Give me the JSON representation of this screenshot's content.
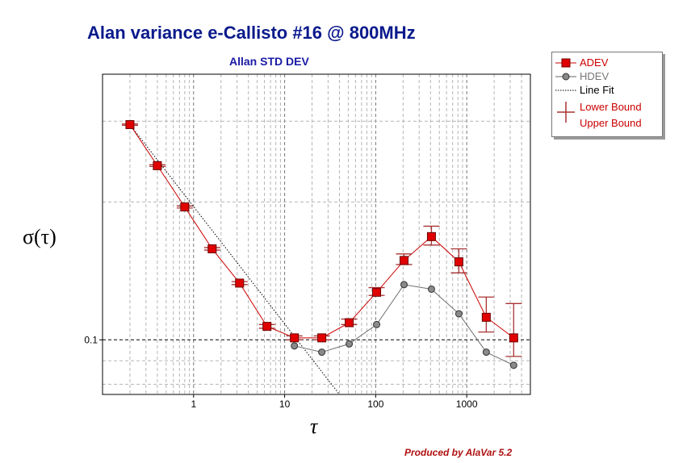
{
  "chart_data": {
    "type": "line",
    "title": "Alan variance e-Callisto #16 @ 800MHz",
    "subtitle": "Allan STD DEV",
    "xlabel": "τ",
    "ylabel": "σ(τ)",
    "xscale": "log",
    "yscale": "log",
    "xlim": [
      0.1,
      5000
    ],
    "ylim": [
      0.076,
      0.38
    ],
    "xticks": [
      "1",
      "10",
      "100",
      "1000"
    ],
    "yticks": [
      "0.1"
    ],
    "grid": true,
    "legend_position": "top-right",
    "series": [
      {
        "name": "ADEV",
        "color": "#cc0000",
        "marker": "square",
        "x": [
          0.2,
          0.4,
          0.8,
          1.6,
          3.2,
          6.4,
          12.8,
          25.6,
          51.2,
          102.4,
          204.8,
          409.6,
          819.2,
          1638.4,
          3276.8
        ],
        "y": [
          0.295,
          0.24,
          0.195,
          0.158,
          0.133,
          0.107,
          0.101,
          0.101,
          0.109,
          0.127,
          0.149,
          0.168,
          0.148,
          0.112,
          0.101
        ]
      },
      {
        "name": "HDEV",
        "color": "#777777",
        "marker": "circle",
        "x": [
          12.8,
          25.6,
          51.2,
          102.4,
          204.8,
          409.6,
          819.2,
          1638.4,
          3276.8
        ],
        "y": [
          0.097,
          0.094,
          0.098,
          0.108,
          0.132,
          0.129,
          0.114,
          0.094,
          0.088
        ]
      },
      {
        "name": "Line Fit",
        "color": "#000000",
        "style": "dotted",
        "x": [
          0.2,
          40
        ],
        "y": [
          0.295,
          0.076
        ]
      }
    ],
    "error_bars": {
      "name": "Lower Bound / Upper Bound",
      "color": "#aa3333",
      "x": [
        0.2,
        0.4,
        0.8,
        1.6,
        3.2,
        6.4,
        12.8,
        25.6,
        51.2,
        102.4,
        204.8,
        409.6,
        819.2,
        1638.4,
        3276.8
      ],
      "lower": [
        0.294,
        0.239,
        0.194,
        0.157,
        0.132,
        0.106,
        0.1,
        0.1,
        0.108,
        0.125,
        0.146,
        0.161,
        0.14,
        0.104,
        0.092
      ],
      "upper": [
        0.296,
        0.241,
        0.196,
        0.159,
        0.134,
        0.108,
        0.102,
        0.102,
        0.111,
        0.13,
        0.154,
        0.177,
        0.158,
        0.124,
        0.12
      ]
    }
  },
  "legend": {
    "adev": "ADEV",
    "hdev": "HDEV",
    "line_fit": "Line Fit",
    "lower_bound": "Lower Bound",
    "upper_bound": "Upper Bound"
  },
  "footer": "Produced by AlaVar 5.2"
}
